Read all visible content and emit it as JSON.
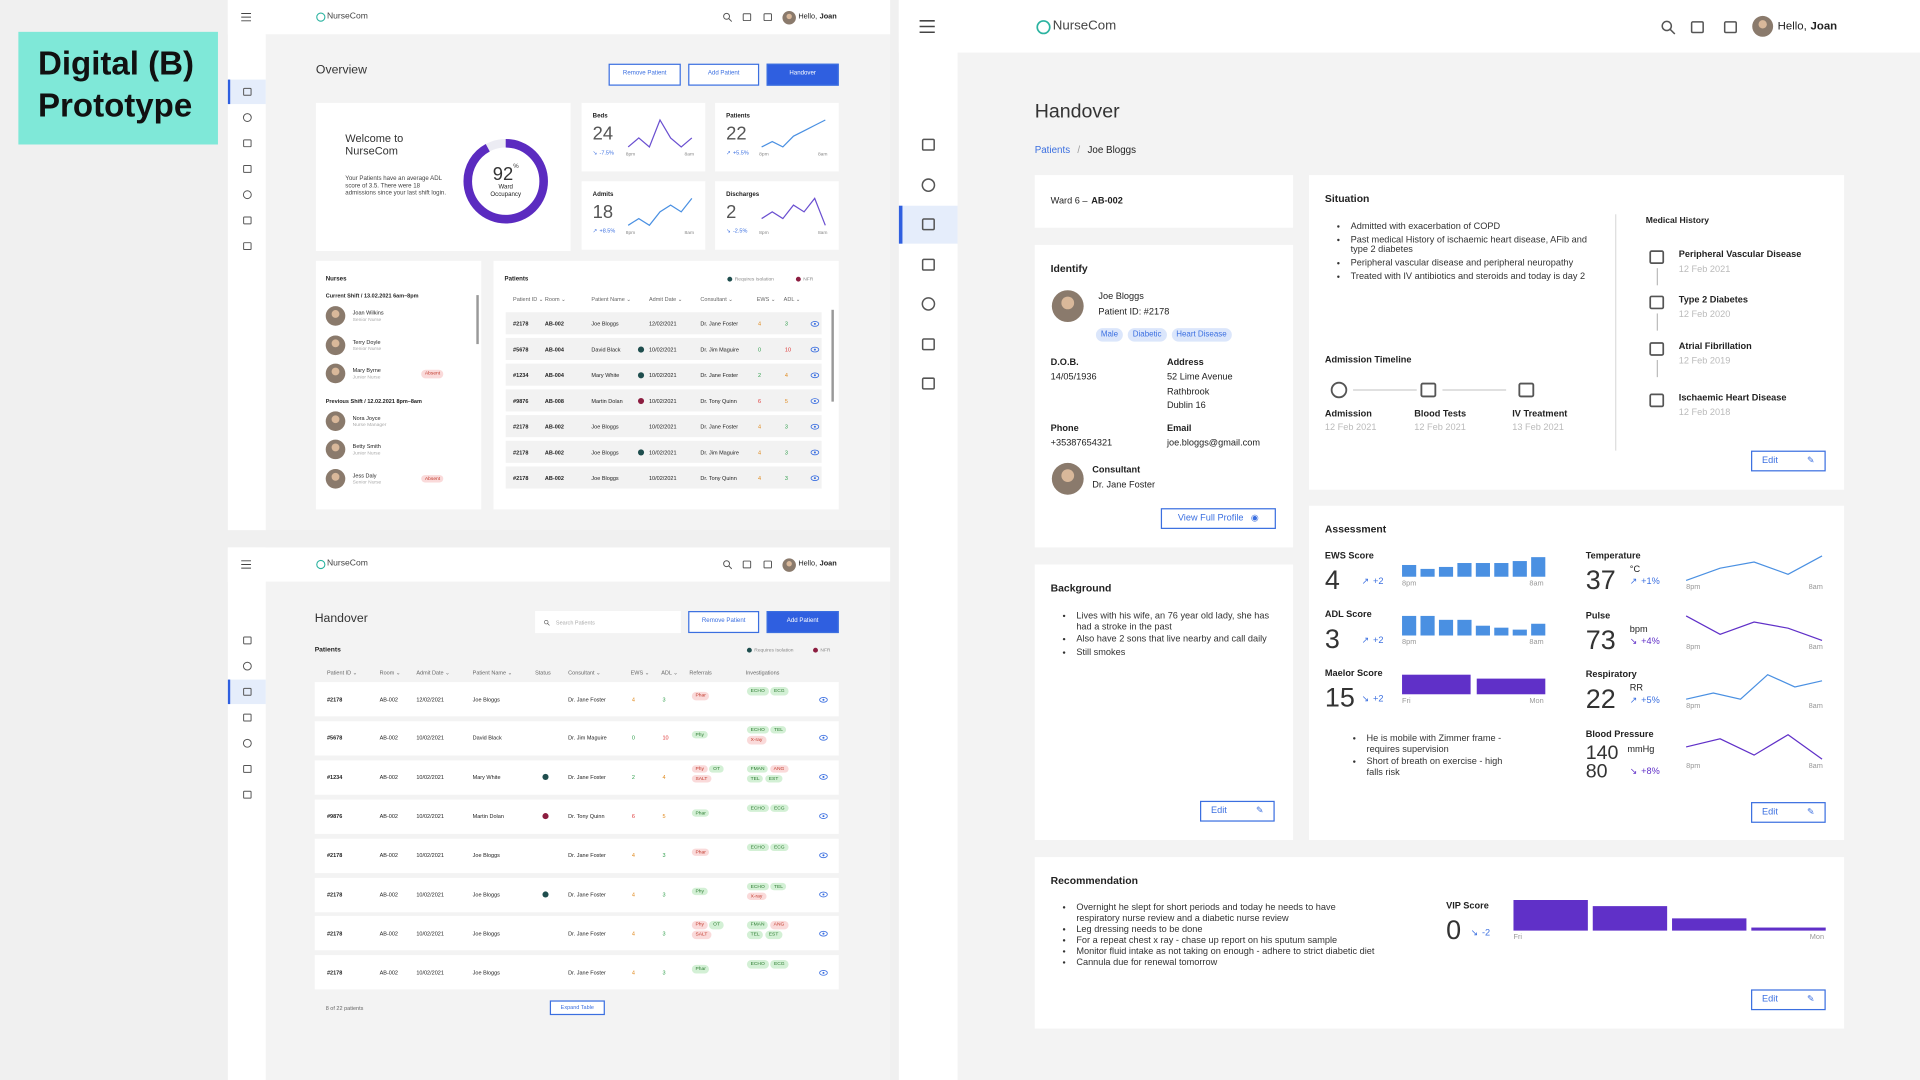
{
  "label": "Digital (B) Prototype",
  "app": {
    "name": "NurseCom",
    "greeting": "Hello,",
    "user": "Joan"
  },
  "tag_tones": [
    {
      "bg": "#d3f0d5",
      "fg": "#2e7d32"
    },
    {
      "bg": "#fadada",
      "fg": "#c0392b"
    }
  ],
  "flag_colors": [
    "#1f4e4e",
    "#8c1d40"
  ],
  "overview": {
    "title": "Overview",
    "buttons": [
      "Remove Patient",
      "Add Patient",
      "Handover"
    ],
    "welcome": {
      "title": "Welcome to NurseCom",
      "text": "Your Patients have an average ADL score of 3.5. There were 18 admissions since your last shift login.",
      "occupancy": 92,
      "unit": "%",
      "label": "Ward Occupancy",
      "color": "#5b2bc0"
    },
    "stats": [
      {
        "label": "Beds",
        "value": 24,
        "change": "-7.5%",
        "rising": false,
        "from": "8pm",
        "to": "8am",
        "trend": [
          3,
          4,
          3,
          6,
          4,
          3,
          4
        ],
        "color": "#6a4fd0"
      },
      {
        "label": "Patients",
        "value": 22,
        "change": "+5.5%",
        "rising": true,
        "from": "8pm",
        "to": "8am",
        "trend": [
          2,
          3,
          2,
          4,
          5,
          6,
          7
        ],
        "color": "#4a90e2"
      },
      {
        "label": "Admits",
        "value": 18,
        "change": "+8.5%",
        "rising": true,
        "from": "8pm",
        "to": "8am",
        "trend": [
          1,
          2,
          1,
          3,
          4,
          3,
          5
        ],
        "color": "#4a90e2"
      },
      {
        "label": "Discharges",
        "value": 2,
        "change": "-2.5%",
        "rising": false,
        "from": "8pm",
        "to": "8am",
        "trend": [
          4,
          5,
          4,
          6,
          5,
          7,
          3
        ],
        "color": "#6a4fd0"
      }
    ],
    "nurses": {
      "title": "Nurses",
      "absent": "Absent",
      "shifts": [
        {
          "label": "Current Shift / 13.02.2021 6am–8pm",
          "staff": [
            {
              "name": "Joan Wilkins",
              "role": "Senior Nurse",
              "absent": false
            },
            {
              "name": "Terry Doyle",
              "role": "Senior Nurse",
              "absent": false
            },
            {
              "name": "Mary Byrne",
              "role": "Junior Nurse",
              "absent": true
            }
          ]
        },
        {
          "label": "Previous Shift / 12.02.2021 8pm–8am",
          "staff": [
            {
              "name": "Nora Joyce",
              "role": "Nurse Manager",
              "absent": false
            },
            {
              "name": "Betty Smith",
              "role": "Junior Nurse",
              "absent": false
            },
            {
              "name": "Jess Daly",
              "role": "Senior Nurse",
              "absent": true
            }
          ]
        }
      ]
    },
    "patients": {
      "title": "Patients",
      "legend": [
        "Requires Isolation",
        "NFR"
      ],
      "columns": [
        "Patient ID",
        "Room",
        "Patient Name",
        "Admit Date",
        "Consultant",
        "EWS",
        "ADL"
      ],
      "rows": [
        {
          "id": "#2178",
          "room": "AB-002",
          "name": "Joe Bloggs",
          "date": "12/02/2021",
          "consultant": "Dr. Jane Foster",
          "ews": 4,
          "adl": 3
        },
        {
          "id": "#5678",
          "room": "AB-004",
          "name": "David Black",
          "date": "10/02/2021",
          "consultant": "Dr. Jim Maguire",
          "ews": 0,
          "adl": 10,
          "flag": 0
        },
        {
          "id": "#1234",
          "room": "AB-004",
          "name": "Mary White",
          "date": "10/02/2021",
          "consultant": "Dr. Jane Foster",
          "ews": 2,
          "adl": 4,
          "flag": 0
        },
        {
          "id": "#9876",
          "room": "AB-008",
          "name": "Martin Dolan",
          "date": "10/02/2021",
          "consultant": "Dr. Tony Quinn",
          "ews": 6,
          "adl": 5,
          "flag": 1
        },
        {
          "id": "#2178",
          "room": "AB-002",
          "name": "Joe Bloggs",
          "date": "10/02/2021",
          "consultant": "Dr. Jane Foster",
          "ews": 4,
          "adl": 3
        },
        {
          "id": "#2178",
          "room": "AB-002",
          "name": "Joe Bloggs",
          "date": "10/02/2021",
          "consultant": "Dr. Jim Maguire",
          "ews": 4,
          "adl": 3,
          "flag": 0
        },
        {
          "id": "#2178",
          "room": "AB-002",
          "name": "Joe Bloggs",
          "date": "10/02/2021",
          "consultant": "Dr. Tony Quinn",
          "ews": 4,
          "adl": 3
        }
      ]
    }
  },
  "handover_list": {
    "title": "Handover",
    "search": "Search Patients",
    "buttons": [
      "Remove Patient",
      "Add Patient"
    ],
    "section": "Patients",
    "legend": [
      "Requires Isolation",
      "NFR"
    ],
    "columns": [
      "Patient ID",
      "Room",
      "Admit Date",
      "Patient Name",
      "Status",
      "Consultant",
      "EWS",
      "ADL",
      "Referrals",
      "Investigations"
    ],
    "rows": [
      {
        "id": "#2178",
        "room": "AB-002",
        "date": "12/02/2021",
        "name": "Joe Bloggs",
        "consultant": "Dr. Jane Foster",
        "ews": 4,
        "adl": 3,
        "referrals": [
          {
            "text": "Phar",
            "tone": 1
          }
        ],
        "investigations": [
          {
            "text": "ECHO",
            "tone": 0
          },
          {
            "text": "ECG",
            "tone": 0
          }
        ]
      },
      {
        "id": "#5678",
        "room": "AB-002",
        "date": "10/02/2021",
        "name": "David Black",
        "consultant": "Dr. Jim Maguire",
        "ews": 0,
        "adl": 10,
        "referrals": [
          {
            "text": "Phy",
            "tone": 0
          }
        ],
        "investigations": [
          {
            "text": "ECHO",
            "tone": 0
          },
          {
            "text": "TEL",
            "tone": 0
          },
          {
            "text": "X-ray",
            "tone": 1
          }
        ]
      },
      {
        "id": "#1234",
        "room": "AB-002",
        "date": "10/02/2021",
        "name": "Mary White",
        "flag": 0,
        "consultant": "Dr. Jane Foster",
        "ews": 2,
        "adl": 4,
        "referrals": [
          {
            "text": "Phy",
            "tone": 1
          },
          {
            "text": "OT",
            "tone": 0
          },
          {
            "text": "SALT",
            "tone": 1
          }
        ],
        "investigations": [
          {
            "text": "FMAN",
            "tone": 0
          },
          {
            "text": "ANG",
            "tone": 1
          },
          {
            "text": "TEL",
            "tone": 0
          },
          {
            "text": "EST",
            "tone": 0
          }
        ]
      },
      {
        "id": "#9876",
        "room": "AB-002",
        "date": "10/02/2021",
        "name": "Martin Dolan",
        "flag": 1,
        "consultant": "Dr. Tony Quinn",
        "ews": 6,
        "adl": 5,
        "referrals": [
          {
            "text": "Phar",
            "tone": 0
          }
        ],
        "investigations": [
          {
            "text": "ECHO",
            "tone": 0
          },
          {
            "text": "ECG",
            "tone": 0
          }
        ]
      },
      {
        "id": "#2178",
        "room": "AB-002",
        "date": "10/02/2021",
        "name": "Joe Bloggs",
        "consultant": "Dr. Jane Foster",
        "ews": 4,
        "adl": 3,
        "referrals": [
          {
            "text": "Phar",
            "tone": 1
          }
        ],
        "investigations": [
          {
            "text": "ECHO",
            "tone": 0
          },
          {
            "text": "ECG",
            "tone": 0
          }
        ]
      },
      {
        "id": "#2178",
        "room": "AB-002",
        "date": "10/02/2021",
        "name": "Joe Bloggs",
        "flag": 0,
        "consultant": "Dr. Jane Foster",
        "ews": 4,
        "adl": 3,
        "referrals": [
          {
            "text": "Phy",
            "tone": 0
          }
        ],
        "investigations": [
          {
            "text": "ECHO",
            "tone": 0
          },
          {
            "text": "TEL",
            "tone": 0
          },
          {
            "text": "X-ray",
            "tone": 1
          }
        ]
      },
      {
        "id": "#2178",
        "room": "AB-002",
        "date": "10/02/2021",
        "name": "Joe Bloggs",
        "consultant": "Dr. Jane Foster",
        "ews": 4,
        "adl": 3,
        "referrals": [
          {
            "text": "Phy",
            "tone": 1
          },
          {
            "text": "OT",
            "tone": 0
          },
          {
            "text": "SALT",
            "tone": 1
          }
        ],
        "investigations": [
          {
            "text": "FMAN",
            "tone": 0
          },
          {
            "text": "ANG",
            "tone": 1
          },
          {
            "text": "TEL",
            "tone": 0
          },
          {
            "text": "EST",
            "tone": 0
          }
        ]
      },
      {
        "id": "#2178",
        "room": "AB-002",
        "date": "10/02/2021",
        "name": "Joe Bloggs",
        "consultant": "Dr. Jane Foster",
        "ews": 4,
        "adl": 3,
        "referrals": [
          {
            "text": "Phar",
            "tone": 0
          }
        ],
        "investigations": [
          {
            "text": "ECHO",
            "tone": 0
          },
          {
            "text": "ECG",
            "tone": 0
          }
        ]
      }
    ],
    "footer": "8 of 22 patients",
    "expand": "Expand Table"
  },
  "handover": {
    "title": "Handover",
    "breadcrumb": [
      "Patients",
      "/",
      "Joe Bloggs"
    ],
    "ward": "Ward 6 –",
    "room": "AB-002",
    "identify": {
      "title": "Identify",
      "name": "Joe Bloggs",
      "patient_id": "Patient ID: #2178",
      "tags": [
        "Male",
        "Diabetic",
        "Heart Disease"
      ],
      "fields": [
        {
          "label": "D.O.B.",
          "lines": [
            "14/05/1936"
          ]
        },
        {
          "label": "Address",
          "lines": [
            "52 Lime Avenue",
            "Rathbrook",
            "Dublin 16"
          ]
        },
        {
          "label": "Phone",
          "lines": [
            "+35387654321"
          ]
        },
        {
          "label": "Email",
          "lines": [
            "joe.bloggs@gmail.com"
          ]
        }
      ],
      "consultant_label": "Consultant",
      "consultant": "Dr. Jane Foster",
      "button": "View Full Profile"
    },
    "background": {
      "title": "Background",
      "items": [
        "Lives with his wife, an 76 year old lady, she has had a stroke in the past",
        "Also have 2 sons that live nearby and call daily",
        "Still smokes"
      ],
      "edit": "Edit"
    },
    "situation": {
      "title": "Situation",
      "items": [
        "Admitted with exacerbation of COPD",
        "Past medical History of ischaemic heart disease, AFib and type 2 diabetes",
        "Peripheral vascular disease and peripheral neuropathy",
        "Treated with IV antibiotics and steroids and today is day 2"
      ],
      "timeline_title": "Admission Timeline",
      "timeline": [
        {
          "label": "Admission",
          "date": "12 Feb 2021"
        },
        {
          "label": "Blood Tests",
          "date": "12 Feb 2021"
        },
        {
          "label": "IV Treatment",
          "date": "13 Feb 2021"
        }
      ],
      "history_title": "Medical History",
      "history": [
        {
          "label": "Peripheral Vascular Disease",
          "date": "12 Feb 2021"
        },
        {
          "label": "Type 2 Diabetes",
          "date": "12 Feb 2020"
        },
        {
          "label": "Atrial Fibrillation",
          "date": "12 Feb 2019"
        },
        {
          "label": "Ischaemic Heart Disease",
          "date": "12 Feb 2018"
        }
      ],
      "edit": "Edit"
    },
    "assessment": {
      "title": "Assessment",
      "scores": [
        {
          "label": "EWS Score",
          "value": 4,
          "change": "+2",
          "rising": true,
          "bars": [
            6,
            4,
            5,
            7,
            7,
            7,
            8,
            10
          ],
          "from": "8pm",
          "to": "8am",
          "color": "#4a90e2"
        },
        {
          "label": "ADL Score",
          "value": 3,
          "change": "+2",
          "rising": true,
          "bars": [
            10,
            10,
            8,
            8,
            5,
            4,
            3,
            6
          ],
          "from": "8pm",
          "to": "8am",
          "color": "#4a90e2"
        },
        {
          "label": "Maelor Score",
          "value": 15,
          "change": "+2",
          "rising": false,
          "bars": [
            10,
            8
          ],
          "from": "Fri",
          "to": "Mon",
          "color": "#6030c8"
        }
      ],
      "vitals": [
        {
          "label": "Temperature",
          "value": 37,
          "unit": "°C",
          "change": "+1%",
          "rising": true,
          "trend": [
            3,
            5,
            6,
            4,
            7
          ],
          "from": "8pm",
          "to": "8am",
          "color": "#4a90e2"
        },
        {
          "label": "Pulse",
          "value": 73,
          "unit": "bpm",
          "change": "+4%",
          "rising": false,
          "trend": [
            8,
            5,
            7,
            6,
            4
          ],
          "from": "8pm",
          "to": "8am",
          "color": "#6030c8"
        },
        {
          "label": "Respiratory",
          "value": 22,
          "unit": "RR",
          "change": "+5%",
          "rising": true,
          "trend": [
            3,
            4,
            3,
            7,
            5,
            6
          ],
          "from": "8pm",
          "to": "8am",
          "color": "#4a90e2"
        },
        {
          "label": "Blood Pressure",
          "value": 140,
          "value2": 80,
          "unit": "mmHg",
          "change": "+8%",
          "rising": false,
          "trend": [
            5,
            7,
            3,
            8,
            2
          ],
          "from": "8pm",
          "to": "8am",
          "color": "#6030c8"
        }
      ],
      "items": [
        "He is mobile with Zimmer frame - requires supervision",
        "Short of breath on exercise - high falls risk"
      ],
      "edit": "Edit"
    },
    "recommendation": {
      "title": "Recommendation",
      "items": [
        "Overnight he slept for short periods and today he needs to have respiratory nurse review and a diabetic nurse review",
        "Leg dressing needs to be done",
        "For a repeat chest x ray - chase up report on his sputum sample",
        "Monitor fluid intake as not taking on enough - adhere to strict diabetic diet",
        "Cannula due for renewal tomorrow"
      ],
      "vip": {
        "label": "VIP Score",
        "value": 0,
        "change": "-2",
        "rising": false,
        "bars": [
          10,
          8,
          4,
          1
        ],
        "from": "Fri",
        "to": "Mon",
        "color": "#6030c8"
      },
      "edit": "Edit"
    }
  }
}
